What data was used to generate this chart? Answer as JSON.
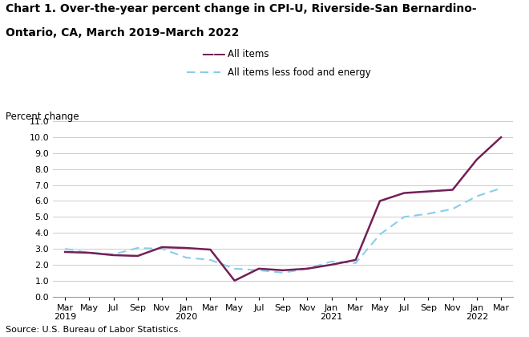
{
  "title_line1": "Chart 1. Over-the-year percent change in CPI-U, Riverside-San Bernardino-",
  "title_line2": "Ontario, CA, March 2019–March 2022",
  "ylabel": "Percent change",
  "source": "Source: U.S. Bureau of Labor Statistics.",
  "ylim": [
    0.0,
    11.0
  ],
  "yticks": [
    0.0,
    1.0,
    2.0,
    3.0,
    4.0,
    5.0,
    6.0,
    7.0,
    8.0,
    9.0,
    10.0,
    11.0
  ],
  "x_labels": [
    "Mar\n2019",
    "May",
    "Jul",
    "Sep",
    "Nov",
    "Jan\n2020",
    "Mar",
    "May",
    "Jul",
    "Sep",
    "Nov",
    "Jan\n2021",
    "Mar",
    "May",
    "Jul",
    "Sep",
    "Nov",
    "Jan\n2022",
    "Mar"
  ],
  "all_items": [
    2.8,
    2.75,
    2.6,
    2.55,
    3.1,
    3.05,
    2.95,
    1.0,
    1.75,
    1.65,
    1.75,
    2.0,
    2.3,
    6.0,
    6.5,
    6.6,
    6.7,
    8.6,
    10.0
  ],
  "all_items_less": [
    3.0,
    2.75,
    2.65,
    3.05,
    3.0,
    2.45,
    2.3,
    1.75,
    1.65,
    1.5,
    1.75,
    2.2,
    2.1,
    3.9,
    5.0,
    5.2,
    5.5,
    6.3,
    6.8
  ],
  "all_items_color": "#722057",
  "all_items_less_color": "#87CEEB",
  "all_items_label": "All items",
  "all_items_less_label": "All items less food and energy",
  "bg_color": "#ffffff",
  "grid_color": "#cccccc"
}
